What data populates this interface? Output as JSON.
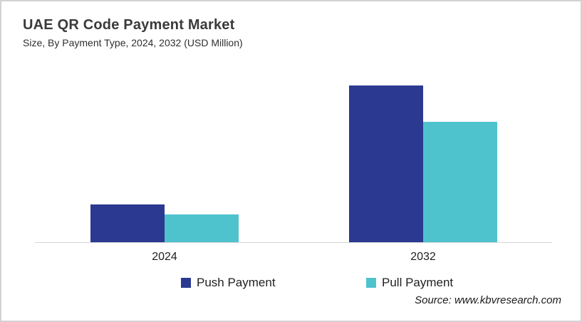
{
  "header": {
    "title": "UAE QR Code Payment Market",
    "subtitle": "Size, By Payment Type, 2024, 2032 (USD Million)"
  },
  "source": "Source: www.kbvresearch.com",
  "colors": {
    "push_payment": "#2B3990",
    "pull_payment": "#4EC3CE",
    "axis_line": "#D6D6D6",
    "text": "#1F1F1F"
  },
  "chart_data": {
    "type": "bar",
    "title": "UAE QR Code Payment Market",
    "subtitle": "Size, By Payment Type, 2024, 2032 (USD Million)",
    "unit": "USD Million",
    "categories": [
      "2024",
      "2032"
    ],
    "series": [
      {
        "name": "Push Payment",
        "color": "#2B3990",
        "values": [
          54,
          221
        ]
      },
      {
        "name": "Pull Payment",
        "color": "#4EC3CE",
        "values": [
          40,
          170
        ]
      }
    ],
    "ylim": [
      0,
      240
    ],
    "value_axis_visible": false,
    "data_labels_visible": false,
    "grid": false,
    "legend_position": "bottom"
  }
}
